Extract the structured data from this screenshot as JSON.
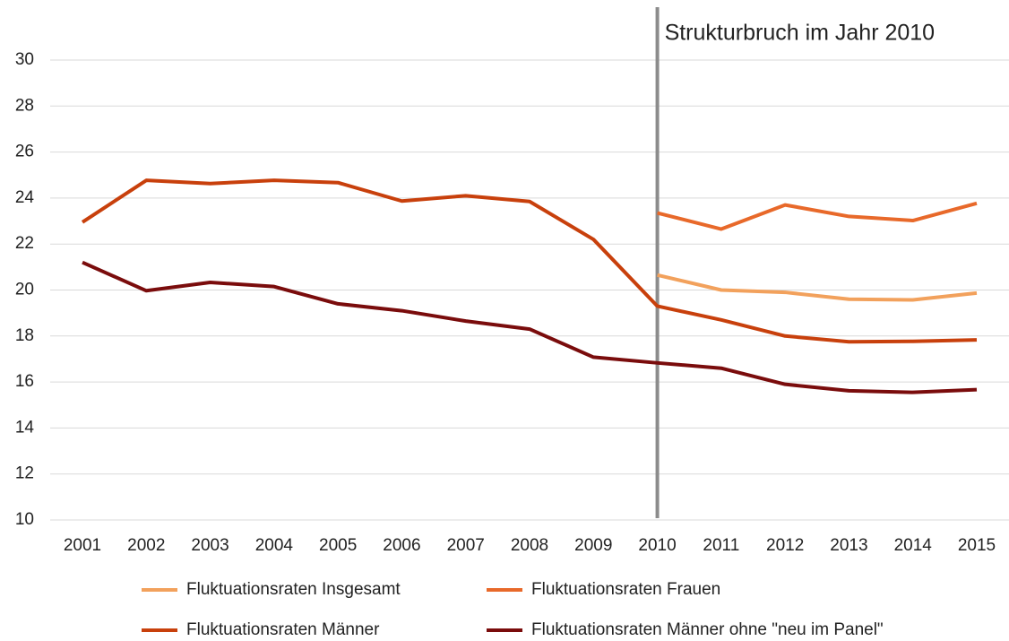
{
  "chart_data": {
    "type": "line",
    "annotation": {
      "text": "Strukturbruch im Jahr 2010",
      "at": "2010"
    },
    "categories": [
      "2001",
      "2002",
      "2003",
      "2004",
      "2005",
      "2006",
      "2007",
      "2008",
      "2009",
      "2010",
      "2011",
      "2012",
      "2013",
      "2014",
      "2015"
    ],
    "series": [
      {
        "name": "Fluktuationsraten Insgesamt",
        "color": "#f2a15c",
        "values": [
          null,
          null,
          null,
          null,
          null,
          null,
          null,
          null,
          null,
          20.65,
          20.0,
          19.9,
          19.6,
          19.57,
          19.87
        ]
      },
      {
        "name": "Fluktuationsraten Frauen",
        "color": "#e8692a",
        "values": [
          null,
          null,
          null,
          null,
          null,
          null,
          null,
          null,
          null,
          23.35,
          22.65,
          23.7,
          23.2,
          23.02,
          23.77
        ]
      },
      {
        "name": "Fluktuationsraten Männer",
        "color": "#c8400c",
        "values": [
          22.95,
          24.77,
          24.63,
          24.77,
          24.67,
          23.87,
          24.1,
          23.85,
          22.2,
          19.3,
          18.7,
          18.0,
          17.75,
          17.77,
          17.83
        ]
      },
      {
        "name": "Fluktuationsraten Männer ohne \"neu im Panel\"",
        "color": "#7a0c0c",
        "values": [
          21.2,
          19.97,
          20.33,
          20.15,
          19.4,
          19.1,
          18.65,
          18.3,
          17.08,
          16.83,
          16.6,
          15.9,
          15.62,
          15.55,
          15.67
        ]
      }
    ],
    "ylim": [
      10,
      30
    ],
    "yticks": [
      10,
      12,
      14,
      16,
      18,
      20,
      22,
      24,
      26,
      28,
      30
    ],
    "grid": true
  }
}
